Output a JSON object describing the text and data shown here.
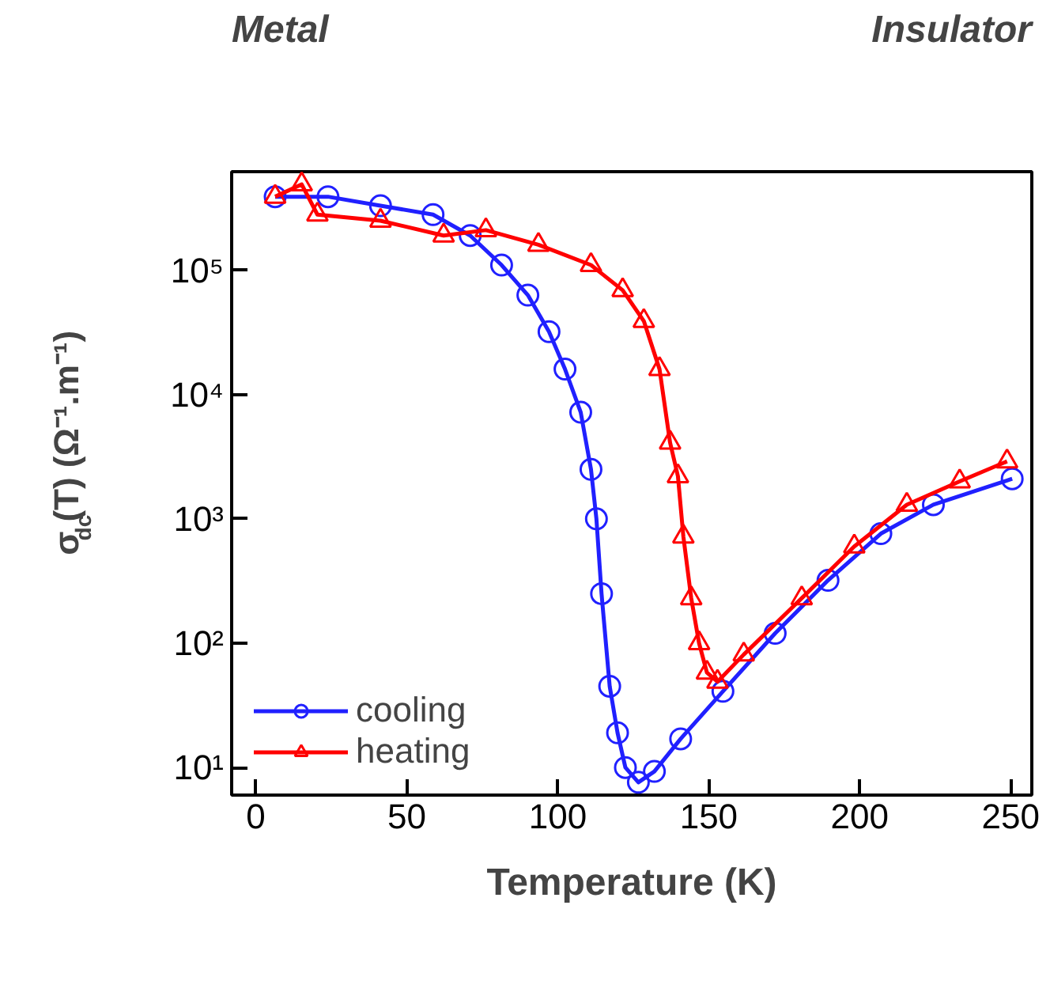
{
  "chart_data": {
    "type": "line",
    "xlabel": "Temperature (K)",
    "ylabel": "σ$_{dc}$(T) (Ω⁻¹.m⁻¹)",
    "annotations": [
      "Metal",
      "Insulator"
    ],
    "log": "y",
    "grid": false,
    "legend": "bottom left",
    "xlim": [
      -8,
      257
    ],
    "xticks": [
      0,
      50,
      100,
      150,
      200,
      250
    ],
    "ylim": [
      6,
      620000
    ],
    "yticks": [
      {
        "value": 10,
        "label": "10¹"
      },
      {
        "value": 100,
        "label": "10²"
      },
      {
        "value": 1000,
        "label": "10³"
      },
      {
        "value": 10000,
        "label": "10⁴"
      },
      {
        "value": 100000,
        "label": "10⁵"
      }
    ],
    "series": [
      {
        "name": "cooling",
        "color": "#2020ff",
        "marker": "circle",
        "x": [
          6.4,
          23.9,
          41.3,
          58.7,
          71,
          81.4,
          90.1,
          97.1,
          102.4,
          107.6,
          111,
          112.8,
          114.5,
          117.2,
          119.8,
          122.4,
          126.7,
          132,
          140.7,
          154.7,
          172,
          189.5,
          207,
          224.4,
          250.5
        ],
        "values": [
          390000,
          390000,
          330000,
          280000,
          190000,
          110000,
          63000,
          32000,
          16000,
          7200,
          2500,
          1000,
          250,
          45,
          19,
          10,
          7.6,
          9.3,
          17,
          41,
          120,
          320,
          760,
          1300,
          2100
        ]
      },
      {
        "name": "heating",
        "color": "#ff0000",
        "marker": "triangle",
        "x": [
          6.4,
          15.2,
          20.4,
          41.3,
          62.2,
          76.2,
          93.6,
          111,
          121.5,
          128.5,
          133.7,
          137.2,
          139.8,
          141.6,
          144.2,
          146.8,
          149.4,
          152.9,
          161.6,
          180.8,
          198.2,
          215.6,
          233.1,
          248.8
        ],
        "values": [
          390000,
          490000,
          280000,
          250000,
          190000,
          210000,
          160000,
          110000,
          69000,
          39000,
          16000,
          4100,
          2200,
          720,
          230,
          100,
          58,
          49,
          81,
          230,
          600,
          1300,
          2000,
          2900
        ]
      }
    ]
  }
}
